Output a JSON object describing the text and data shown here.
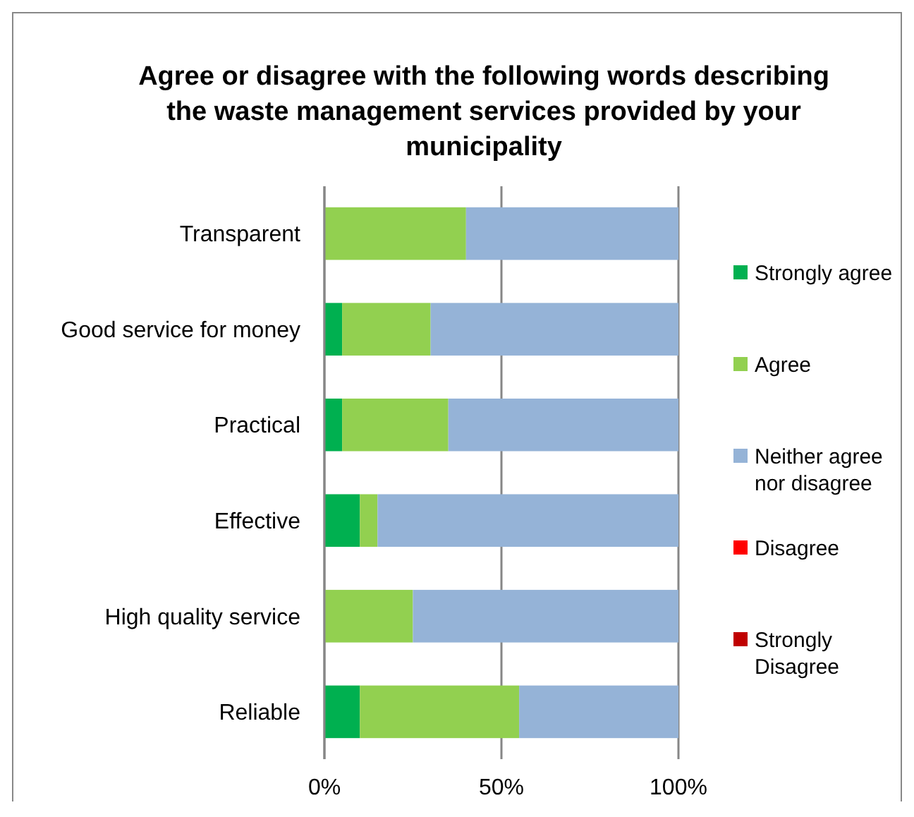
{
  "chart_data": {
    "type": "bar",
    "orientation": "horizontal",
    "stacked": true,
    "title": "Agree or disagree with the following words describing the waste management services provided by your municipality",
    "categories": [
      "Transparent",
      "Good service for money",
      "Practical",
      "Effective",
      "High quality service",
      "Reliable"
    ],
    "series": [
      {
        "name": "Strongly agree",
        "color": "#00b050",
        "values": [
          0,
          5,
          5,
          10,
          0,
          10
        ]
      },
      {
        "name": "Agree",
        "color": "#92d050",
        "values": [
          40,
          25,
          30,
          5,
          25,
          45
        ]
      },
      {
        "name": "Neither agree nor disagree",
        "color": "#95b3d7",
        "values": [
          60,
          70,
          65,
          85,
          75,
          45
        ]
      },
      {
        "name": "Disagree",
        "color": "#ff0000",
        "values": [
          0,
          0,
          0,
          0,
          0,
          0
        ]
      },
      {
        "name": "Strongly Disagree",
        "color": "#c00000",
        "values": [
          0,
          0,
          0,
          0,
          0,
          0
        ]
      }
    ],
    "xlim": [
      0,
      100
    ],
    "xticks": [
      {
        "value": 0,
        "label": "0%"
      },
      {
        "value": 50,
        "label": "50%"
      },
      {
        "value": 100,
        "label": "100%"
      }
    ],
    "grid": "x",
    "legend": "right"
  }
}
